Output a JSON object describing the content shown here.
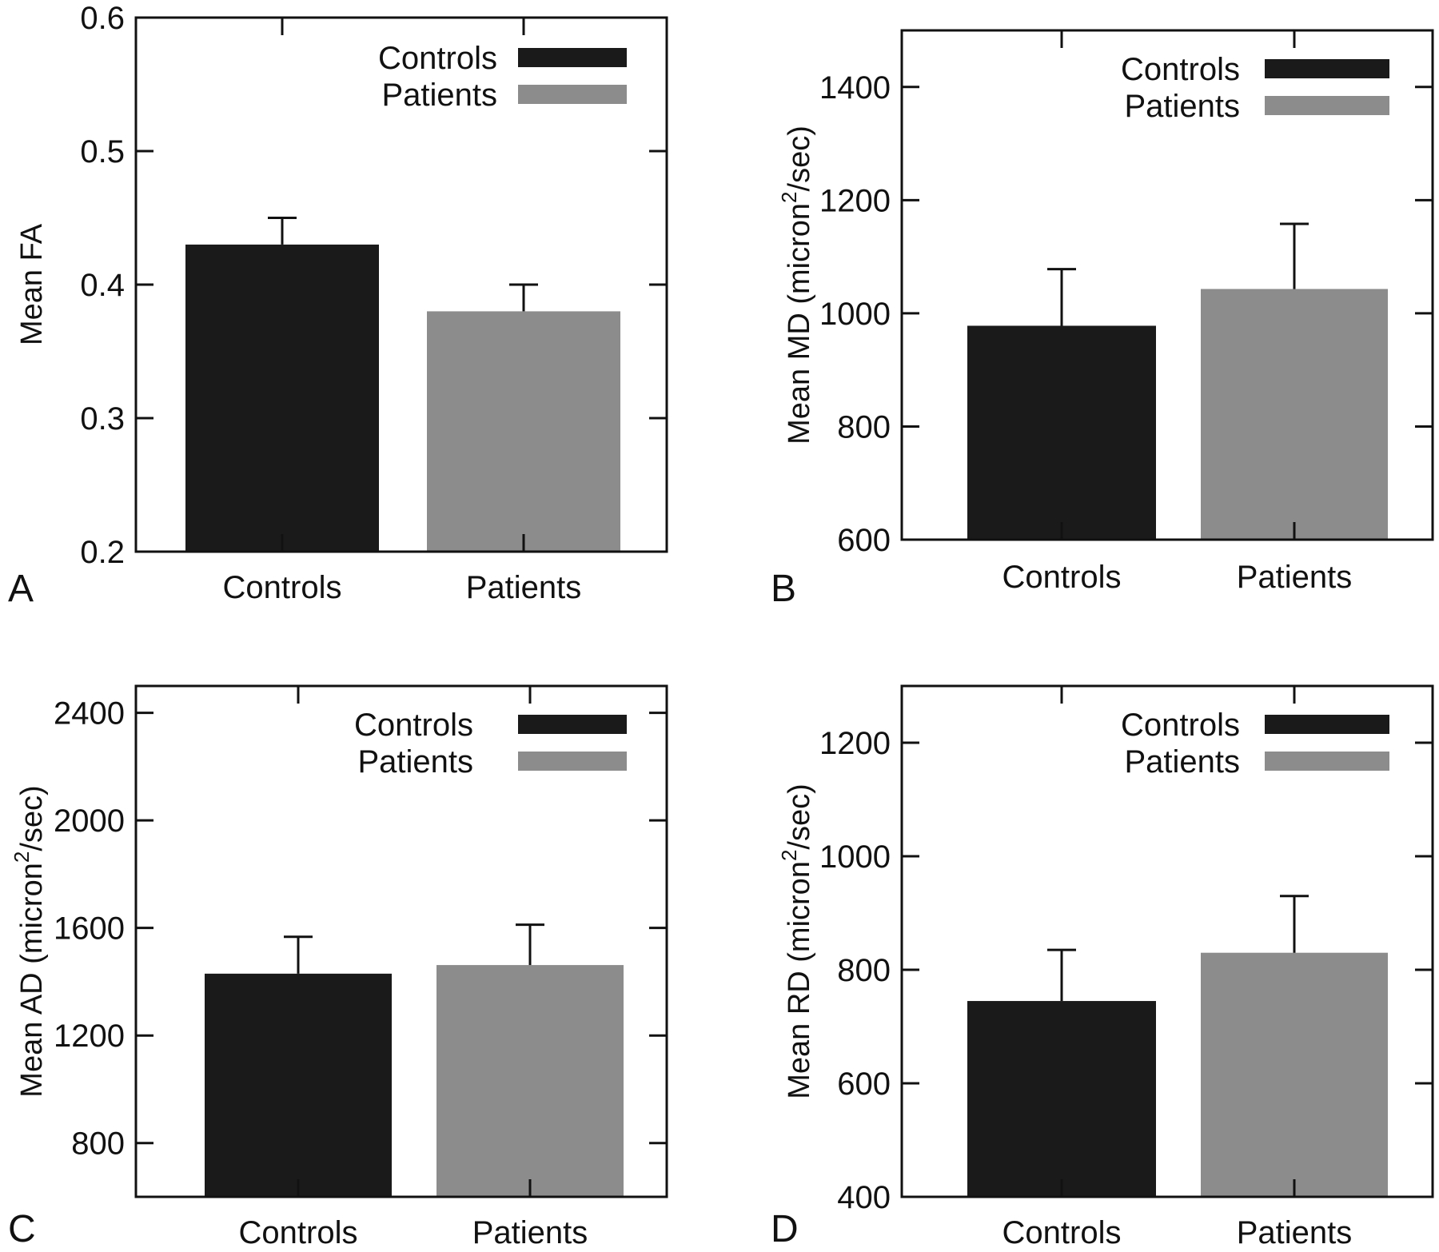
{
  "colors": {
    "controls": "#1a1a1a",
    "patients": "#8c8c8c",
    "axis": "#111111"
  },
  "panels": [
    {
      "letter": "A",
      "ylabel": {
        "main": "Mean FA",
        "pre": "",
        "sup": "",
        "post": ""
      }
    },
    {
      "letter": "B",
      "ylabel": {
        "main": "",
        "pre": "Mean MD (micron",
        "sup": "2",
        "post": "/sec)"
      }
    },
    {
      "letter": "C",
      "ylabel": {
        "main": "",
        "pre": "Mean AD (micron",
        "sup": "2",
        "post": "/sec)"
      }
    },
    {
      "letter": "D",
      "ylabel": {
        "main": "",
        "pre": "Mean RD (micron",
        "sup": "2",
        "post": "/sec)"
      }
    }
  ],
  "chart_data": [
    {
      "type": "bar",
      "panel": "A",
      "categories": [
        "Controls",
        "Patients"
      ],
      "values": [
        0.43,
        0.38
      ],
      "errors": [
        0.02,
        0.02
      ],
      "ylabel": "Mean FA",
      "ylim": [
        0.2,
        0.6
      ],
      "yticks": [
        "0.2",
        "0.3",
        "0.4",
        "0.5",
        "0.6"
      ],
      "ytick_values": [
        0.2,
        0.3,
        0.4,
        0.5,
        0.6
      ],
      "legend": [
        "Controls",
        "Patients"
      ],
      "legend_position": "top-right",
      "grid": false
    },
    {
      "type": "bar",
      "panel": "B",
      "categories": [
        "Controls",
        "Patients"
      ],
      "values": [
        978,
        1043
      ],
      "errors": [
        100,
        115
      ],
      "ylabel": "Mean MD (micron2/sec)",
      "ylim": [
        600,
        1500
      ],
      "yticks": [
        "600",
        "800",
        "1000",
        "1200",
        "1400"
      ],
      "ytick_values": [
        600,
        800,
        1000,
        1200,
        1400
      ],
      "legend": [
        "Controls",
        "Patients"
      ],
      "legend_position": "top-right",
      "grid": false
    },
    {
      "type": "bar",
      "panel": "C",
      "categories": [
        "Controls",
        "Patients"
      ],
      "values": [
        1430,
        1462
      ],
      "errors": [
        137,
        150
      ],
      "ylabel": "Mean AD (micron2/sec)",
      "ylim": [
        600,
        2500
      ],
      "yticks": [
        "800",
        "1200",
        "1600",
        "2000",
        "2400"
      ],
      "ytick_values": [
        800,
        1200,
        1600,
        2000,
        2400
      ],
      "legend": [
        "Controls",
        "Patients"
      ],
      "legend_position": "top-right",
      "grid": false
    },
    {
      "type": "bar",
      "panel": "D",
      "categories": [
        "Controls",
        "Patients"
      ],
      "values": [
        745,
        830
      ],
      "errors": [
        90,
        100
      ],
      "ylabel": "Mean RD (micron2/sec)",
      "ylim": [
        400,
        1300
      ],
      "yticks": [
        "400",
        "600",
        "800",
        "1000",
        "1200"
      ],
      "ytick_values": [
        400,
        600,
        800,
        1000,
        1200
      ],
      "legend": [
        "Controls",
        "Patients"
      ],
      "legend_position": "top-right",
      "grid": false
    }
  ]
}
